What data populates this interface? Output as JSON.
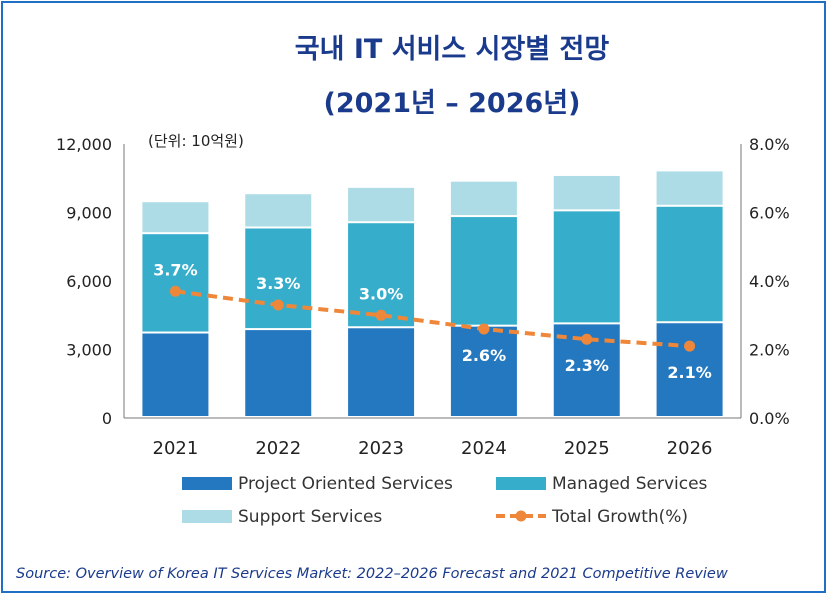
{
  "chart_data": {
    "type": "bar",
    "stacked": true,
    "title": "국내 IT 서비스 시장별 전망",
    "subtitle": "(2021년 – 2026년)",
    "unit_label": "(단위: 10억원)",
    "categories": [
      "2021",
      "2022",
      "2023",
      "2024",
      "2025",
      "2026"
    ],
    "y_ticks": [
      "0",
      "3,000",
      "6,000",
      "9,000",
      "12,000"
    ],
    "y2_ticks": [
      "0.0%",
      "2.0%",
      "4.0%",
      "6.0%",
      "8.0%"
    ],
    "ylim": [
      0,
      12000
    ],
    "y2lim": [
      0,
      8
    ],
    "series": [
      {
        "name": "Project Oriented Services",
        "color": "#2478C0",
        "values": [
          3700,
          3850,
          3930,
          4000,
          4100,
          4150
        ]
      },
      {
        "name": "Managed Services",
        "color": "#36AECB",
        "values": [
          4350,
          4450,
          4600,
          4800,
          4950,
          5100
        ]
      },
      {
        "name": "Support Services",
        "color": "#ADDCE6",
        "values": [
          1400,
          1500,
          1550,
          1550,
          1550,
          1550
        ]
      }
    ],
    "line": {
      "name": "Total Growth(%)",
      "color": "#EE8739",
      "values": [
        3.7,
        3.3,
        3.0,
        2.6,
        2.3,
        2.1
      ],
      "labels": [
        "3.7%",
        "3.3%",
        "3.0%",
        "2.6%",
        "2.3%",
        "2.1%"
      ]
    },
    "legend_position": "bottom",
    "grid": false
  },
  "source": "Source: Overview of Korea IT Services Market: 2022–2026 Forecast and 2021 Competitive Review"
}
